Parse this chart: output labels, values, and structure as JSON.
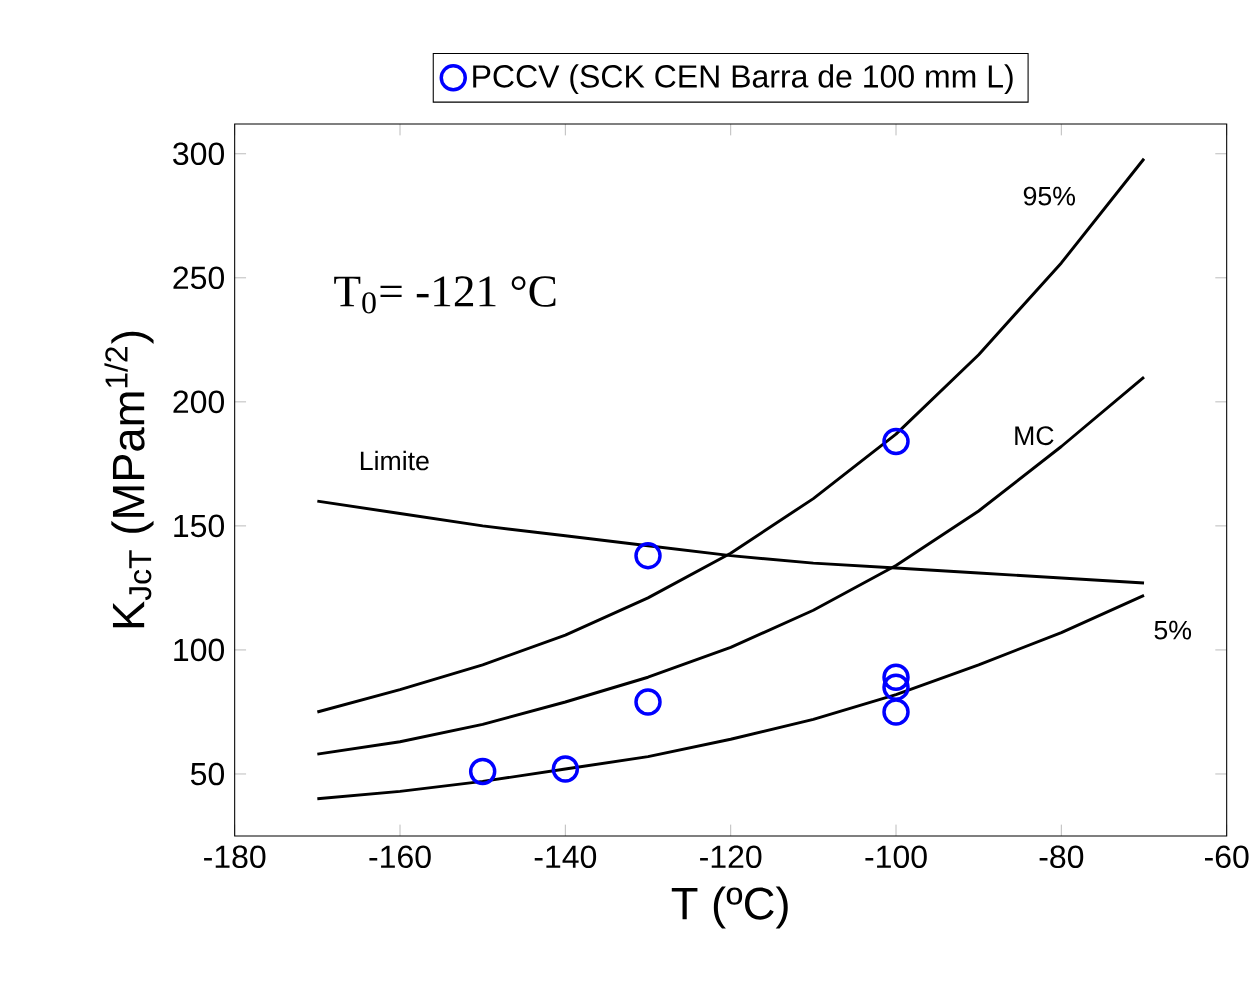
{
  "chart_data": {
    "type": "line",
    "xlabel": "T (ºC)",
    "ylabel": "K$_{JcT}$ (MPam$^{1/2}$)",
    "xlim": [
      -180,
      -60
    ],
    "ylim": [
      25,
      312
    ],
    "xticks": [
      -180,
      -160,
      -140,
      -120,
      -100,
      -80,
      -60
    ],
    "yticks": [
      50,
      100,
      150,
      200,
      250,
      300
    ],
    "grid": false,
    "legend": "top",
    "annotations": [
      "T$_{0}$= -121 °C"
    ],
    "series": [
      {
        "name": "PCCV (SCK CEN Barra de 100 mm L)",
        "type": "scatter",
        "marker": "circle",
        "color": "#0000ff",
        "x": [
          -150,
          -140,
          -130,
          -130,
          -100,
          -100,
          -100,
          -100
        ],
        "values": [
          51,
          52,
          138,
          79,
          184,
          89,
          85,
          75
        ]
      },
      {
        "name": "95%",
        "color": "#000000",
        "x": [
          -170,
          -160,
          -150,
          -140,
          -130,
          -120,
          -110,
          -100,
          -90,
          -80,
          -70
        ],
        "values": [
          75,
          84,
          94,
          106,
          121,
          139,
          161,
          187,
          219,
          256,
          298
        ]
      },
      {
        "name": "MC",
        "color": "#000000",
        "x": [
          -170,
          -160,
          -150,
          -140,
          -130,
          -120,
          -110,
          -100,
          -90,
          -80,
          -70
        ],
        "values": [
          58,
          63,
          70,
          79,
          89,
          101,
          116,
          134,
          156,
          182,
          210
        ]
      },
      {
        "name": "5%",
        "color": "#000000",
        "x": [
          -170,
          -160,
          -150,
          -140,
          -130,
          -120,
          -110,
          -100,
          -90,
          -80,
          -70
        ],
        "values": [
          40,
          43,
          47,
          52,
          57,
          64,
          72,
          82,
          94,
          107,
          122
        ]
      },
      {
        "name": "Limite",
        "color": "#000000",
        "x": [
          -170,
          -160,
          -150,
          -140,
          -130,
          -120,
          -110,
          -100,
          -90,
          -80,
          -70
        ],
        "values": [
          160,
          155,
          150,
          146,
          142,
          138,
          135,
          133,
          131,
          129,
          127
        ]
      }
    ]
  }
}
